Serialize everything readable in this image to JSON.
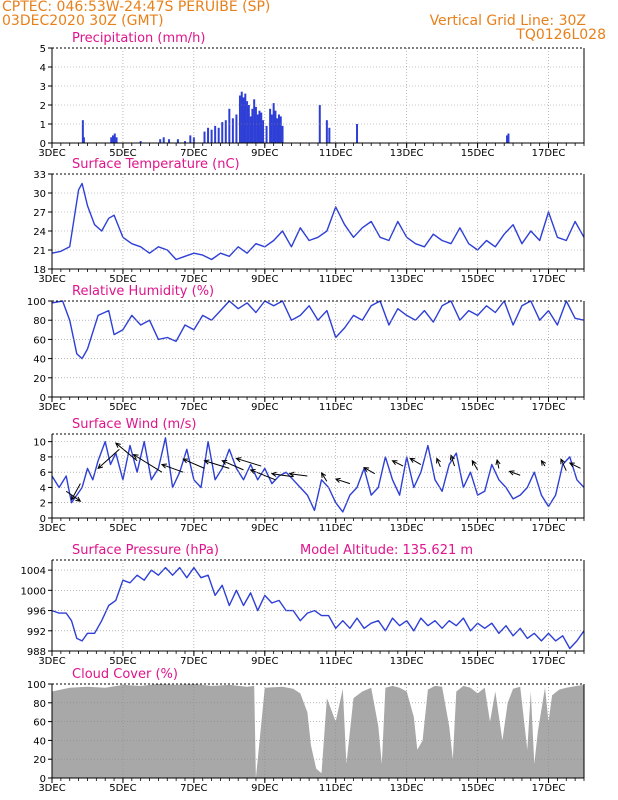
{
  "header": {
    "line1": "CPTEC:  046:53W-24:47S  PERUIBE (SP)",
    "line2": "03DEC2020 30Z (GMT)",
    "grid_note": "Vertical Grid Line: 30Z",
    "code": "TQ0126L028"
  },
  "colors": {
    "header": "#e8801a",
    "title": "#e0148c",
    "line": "#2e3fd6",
    "cloud": "#a8a8a8",
    "grid": "#8c8c8c"
  },
  "x_axis": {
    "start_day": 3,
    "end_day": 18,
    "ticks": [
      {
        "day": 3,
        "label": "3DEC"
      },
      {
        "day": 5,
        "label": "5DEC"
      },
      {
        "day": 7,
        "label": "7DEC"
      },
      {
        "day": 9,
        "label": "9DEC"
      },
      {
        "day": 11,
        "label": "11DEC"
      },
      {
        "day": 13,
        "label": "13DEC"
      },
      {
        "day": 15,
        "label": "15DEC"
      },
      {
        "day": 17,
        "label": "17DEC"
      }
    ]
  },
  "chart_data": [
    {
      "type": "bar",
      "title": "Precipitation (mm/h)",
      "ylim": [
        0,
        5
      ],
      "yticks": [
        0,
        1,
        2,
        3,
        4,
        5
      ],
      "bars": [
        [
          3.87,
          1.2
        ],
        [
          3.9,
          0.3
        ],
        [
          4.67,
          0.3
        ],
        [
          4.72,
          0.4
        ],
        [
          4.77,
          0.5
        ],
        [
          4.82,
          0.3
        ],
        [
          5.5,
          0.1
        ],
        [
          6.05,
          0.2
        ],
        [
          6.15,
          0.3
        ],
        [
          6.3,
          0.2
        ],
        [
          6.55,
          0.2
        ],
        [
          6.75,
          0.1
        ],
        [
          6.9,
          0.4
        ],
        [
          7.0,
          0.3
        ],
        [
          7.3,
          0.6
        ],
        [
          7.4,
          0.8
        ],
        [
          7.5,
          0.7
        ],
        [
          7.6,
          0.9
        ],
        [
          7.7,
          0.8
        ],
        [
          7.8,
          1.1
        ],
        [
          7.9,
          1.2
        ],
        [
          8.0,
          1.8
        ],
        [
          8.1,
          1.3
        ],
        [
          8.2,
          1.5
        ],
        [
          8.3,
          2.5
        ],
        [
          8.35,
          2.7
        ],
        [
          8.4,
          2.4
        ],
        [
          8.45,
          2.6
        ],
        [
          8.5,
          2.2
        ],
        [
          8.55,
          2.0
        ],
        [
          8.6,
          1.4
        ],
        [
          8.65,
          1.8
        ],
        [
          8.7,
          2.3
        ],
        [
          8.75,
          1.9
        ],
        [
          8.8,
          1.5
        ],
        [
          8.85,
          1.7
        ],
        [
          8.9,
          1.6
        ],
        [
          8.95,
          1.2
        ],
        [
          9.05,
          0.9
        ],
        [
          9.15,
          1.8
        ],
        [
          9.2,
          1.5
        ],
        [
          9.25,
          2.1
        ],
        [
          9.3,
          1.7
        ],
        [
          9.35,
          1.3
        ],
        [
          9.4,
          1.5
        ],
        [
          9.45,
          1.4
        ],
        [
          9.5,
          0.9
        ],
        [
          10.55,
          2.0
        ],
        [
          10.75,
          1.2
        ],
        [
          10.82,
          0.8
        ],
        [
          11.6,
          1.0
        ],
        [
          15.83,
          0.4
        ],
        [
          15.87,
          0.5
        ]
      ]
    },
    {
      "type": "line",
      "title": "Surface Temperature (nC)",
      "ylim": [
        18,
        33
      ],
      "yticks": [
        18,
        21,
        24,
        27,
        30,
        33
      ],
      "x": [
        3,
        3.25,
        3.5,
        3.75,
        3.85,
        4,
        4.2,
        4.4,
        4.6,
        4.75,
        5,
        5.25,
        5.5,
        5.75,
        6,
        6.25,
        6.5,
        6.75,
        7,
        7.25,
        7.5,
        7.75,
        8,
        8.25,
        8.5,
        8.75,
        9,
        9.25,
        9.5,
        9.75,
        10,
        10.25,
        10.5,
        10.75,
        11,
        11.25,
        11.5,
        11.75,
        12,
        12.25,
        12.5,
        12.75,
        13,
        13.25,
        13.5,
        13.75,
        14,
        14.25,
        14.5,
        14.75,
        15,
        15.25,
        15.5,
        15.75,
        16,
        16.25,
        16.5,
        16.75,
        17,
        17.25,
        17.5,
        17.75,
        18
      ],
      "values": [
        20.5,
        20.8,
        21.5,
        30.5,
        31.5,
        28,
        25,
        24,
        26,
        26.5,
        23,
        22,
        21.5,
        20.5,
        21.5,
        21,
        19.5,
        20,
        20.5,
        20.2,
        19.5,
        20.5,
        20,
        21.5,
        20.5,
        22,
        21.5,
        22.5,
        24,
        21.5,
        24.5,
        22.5,
        23,
        24,
        27.8,
        25,
        23,
        24.5,
        25.5,
        23,
        22.5,
        25.5,
        23,
        22,
        21.5,
        23.5,
        22.5,
        22,
        24.5,
        22,
        21,
        22.5,
        21.5,
        23.5,
        25,
        22,
        24,
        22.5,
        27,
        23,
        22.5,
        25.5,
        23
      ]
    },
    {
      "type": "line",
      "title": "Relative Humidity (%)",
      "ylim": [
        0,
        100
      ],
      "yticks": [
        0,
        20,
        40,
        60,
        80,
        100
      ],
      "x": [
        3,
        3.3,
        3.5,
        3.7,
        3.85,
        4,
        4.3,
        4.6,
        4.75,
        5,
        5.25,
        5.5,
        5.75,
        6,
        6.25,
        6.5,
        6.75,
        7,
        7.25,
        7.5,
        7.75,
        8,
        8.25,
        8.5,
        8.75,
        9,
        9.25,
        9.5,
        9.75,
        10,
        10.25,
        10.5,
        10.75,
        11,
        11.25,
        11.5,
        11.75,
        12,
        12.25,
        12.5,
        12.75,
        13,
        13.25,
        13.5,
        13.75,
        14,
        14.25,
        14.5,
        14.75,
        15,
        15.25,
        15.5,
        15.75,
        16,
        16.25,
        16.5,
        16.75,
        17,
        17.25,
        17.5,
        17.75,
        18
      ],
      "values": [
        98,
        100,
        80,
        45,
        40,
        50,
        85,
        90,
        65,
        70,
        85,
        75,
        80,
        60,
        62,
        58,
        75,
        70,
        85,
        80,
        90,
        100,
        92,
        98,
        88,
        100,
        95,
        100,
        80,
        85,
        95,
        80,
        90,
        62,
        72,
        85,
        80,
        95,
        100,
        75,
        92,
        85,
        80,
        90,
        78,
        95,
        100,
        80,
        90,
        85,
        95,
        88,
        100,
        75,
        95,
        100,
        80,
        90,
        75,
        100,
        82,
        80
      ]
    },
    {
      "type": "line",
      "title": "Surface Wind (m/s)",
      "ylim": [
        0,
        11
      ],
      "yticks": [
        0,
        2,
        4,
        6,
        8,
        10
      ],
      "x": [
        3,
        3.2,
        3.4,
        3.55,
        3.7,
        3.85,
        4,
        4.15,
        4.3,
        4.5,
        4.65,
        4.8,
        5,
        5.2,
        5.4,
        5.6,
        5.8,
        6,
        6.2,
        6.4,
        6.6,
        6.8,
        7,
        7.2,
        7.4,
        7.6,
        7.8,
        8,
        8.2,
        8.4,
        8.6,
        8.8,
        9,
        9.2,
        9.4,
        9.6,
        9.8,
        10,
        10.2,
        10.4,
        10.6,
        10.8,
        11,
        11.2,
        11.4,
        11.6,
        11.8,
        12,
        12.2,
        12.4,
        12.6,
        12.8,
        13,
        13.2,
        13.4,
        13.6,
        13.8,
        14,
        14.2,
        14.4,
        14.6,
        14.8,
        15,
        15.2,
        15.4,
        15.6,
        15.8,
        16,
        16.2,
        16.4,
        16.6,
        16.8,
        17,
        17.2,
        17.4,
        17.6,
        17.8,
        18
      ],
      "values": [
        5.5,
        4,
        5.5,
        2,
        3,
        4,
        6.5,
        5,
        7.5,
        10,
        7,
        8.5,
        5,
        9.5,
        6,
        10,
        5,
        6.5,
        10.5,
        4,
        6,
        9,
        5,
        4,
        10,
        5,
        6.5,
        9,
        6.5,
        5,
        7,
        5,
        6.5,
        4.5,
        5.5,
        6,
        5,
        4,
        3,
        1,
        5,
        4,
        2,
        0.8,
        3,
        4,
        6.5,
        3,
        4,
        8,
        5,
        3,
        8,
        4,
        6,
        9.5,
        5,
        3.5,
        7,
        8.5,
        4,
        6,
        3,
        3.5,
        7,
        5,
        4,
        2.5,
        3,
        4,
        6,
        3,
        1.5,
        3,
        7,
        8,
        5,
        4
      ]
    },
    {
      "type": "line",
      "title": "Surface Pressure (hPa)",
      "annotation": "Model Altitude: 135.621  m",
      "ylim": [
        988,
        1006
      ],
      "yticks": [
        988,
        992,
        996,
        1000,
        1004
      ],
      "x": [
        3,
        3.2,
        3.4,
        3.55,
        3.7,
        3.85,
        4,
        4.2,
        4.4,
        4.6,
        4.8,
        5,
        5.2,
        5.4,
        5.6,
        5.8,
        6,
        6.2,
        6.4,
        6.6,
        6.8,
        7,
        7.2,
        7.4,
        7.6,
        7.8,
        8,
        8.2,
        8.4,
        8.6,
        8.8,
        9,
        9.2,
        9.4,
        9.6,
        9.8,
        10,
        10.2,
        10.4,
        10.6,
        10.8,
        11,
        11.2,
        11.4,
        11.6,
        11.8,
        12,
        12.2,
        12.4,
        12.6,
        12.8,
        13,
        13.2,
        13.4,
        13.6,
        13.8,
        14,
        14.2,
        14.4,
        14.6,
        14.8,
        15,
        15.2,
        15.4,
        15.6,
        15.8,
        16,
        16.2,
        16.4,
        16.6,
        16.8,
        17,
        17.2,
        17.4,
        17.6,
        17.8,
        18
      ],
      "values": [
        996,
        995.5,
        995.5,
        994,
        990.5,
        990,
        991.5,
        991.5,
        994,
        997,
        998,
        1002,
        1001.5,
        1003,
        1002,
        1004,
        1003,
        1004.5,
        1003,
        1004.5,
        1002.5,
        1004.5,
        1002.5,
        1003,
        999,
        1001,
        997,
        1000,
        997,
        999.5,
        996,
        999,
        997.5,
        998,
        996,
        996,
        994,
        995.5,
        996,
        995,
        995,
        992.5,
        994,
        992.5,
        994.5,
        992.5,
        993.5,
        994,
        992,
        994.5,
        993,
        994,
        992,
        994.5,
        993,
        994,
        992.5,
        994,
        993,
        994.5,
        992,
        993.5,
        992.5,
        993.5,
        991.5,
        993,
        991,
        992.5,
        990.5,
        991.5,
        990,
        991.5,
        990,
        991,
        988.5,
        990,
        992
      ]
    },
    {
      "type": "area",
      "title": "Cloud Cover (%)",
      "ylim": [
        0,
        100
      ],
      "yticks": [
        0,
        20,
        40,
        60,
        80,
        100
      ],
      "x": [
        3,
        3.5,
        4,
        4.5,
        5,
        5.5,
        6,
        6.5,
        7,
        7.5,
        8,
        8.5,
        8.7,
        8.75,
        9,
        9.5,
        9.8,
        10,
        10.2,
        10.3,
        10.45,
        10.6,
        10.75,
        11,
        11.2,
        11.3,
        11.5,
        11.75,
        12,
        12.2,
        12.3,
        12.4,
        12.6,
        12.8,
        13,
        13.2,
        13.3,
        13.45,
        13.6,
        13.8,
        14,
        14.2,
        14.3,
        14.4,
        14.6,
        14.8,
        15,
        15.2,
        15.35,
        15.5,
        15.7,
        15.85,
        16,
        16.2,
        16.4,
        16.5,
        16.6,
        16.7,
        16.9,
        17,
        17.1,
        17.3,
        17.5,
        17.8,
        18
      ],
      "values": [
        92,
        96,
        97,
        96,
        99,
        98,
        100,
        99,
        100,
        98,
        99,
        97,
        98,
        0,
        96,
        97,
        95,
        90,
        70,
        35,
        10,
        5,
        85,
        60,
        95,
        15,
        85,
        92,
        96,
        55,
        15,
        96,
        98,
        96,
        92,
        65,
        30,
        40,
        94,
        98,
        97,
        55,
        20,
        92,
        98,
        96,
        90,
        96,
        60,
        92,
        40,
        80,
        95,
        97,
        30,
        92,
        15,
        50,
        96,
        60,
        88,
        94,
        96,
        98,
        99
      ]
    }
  ]
}
